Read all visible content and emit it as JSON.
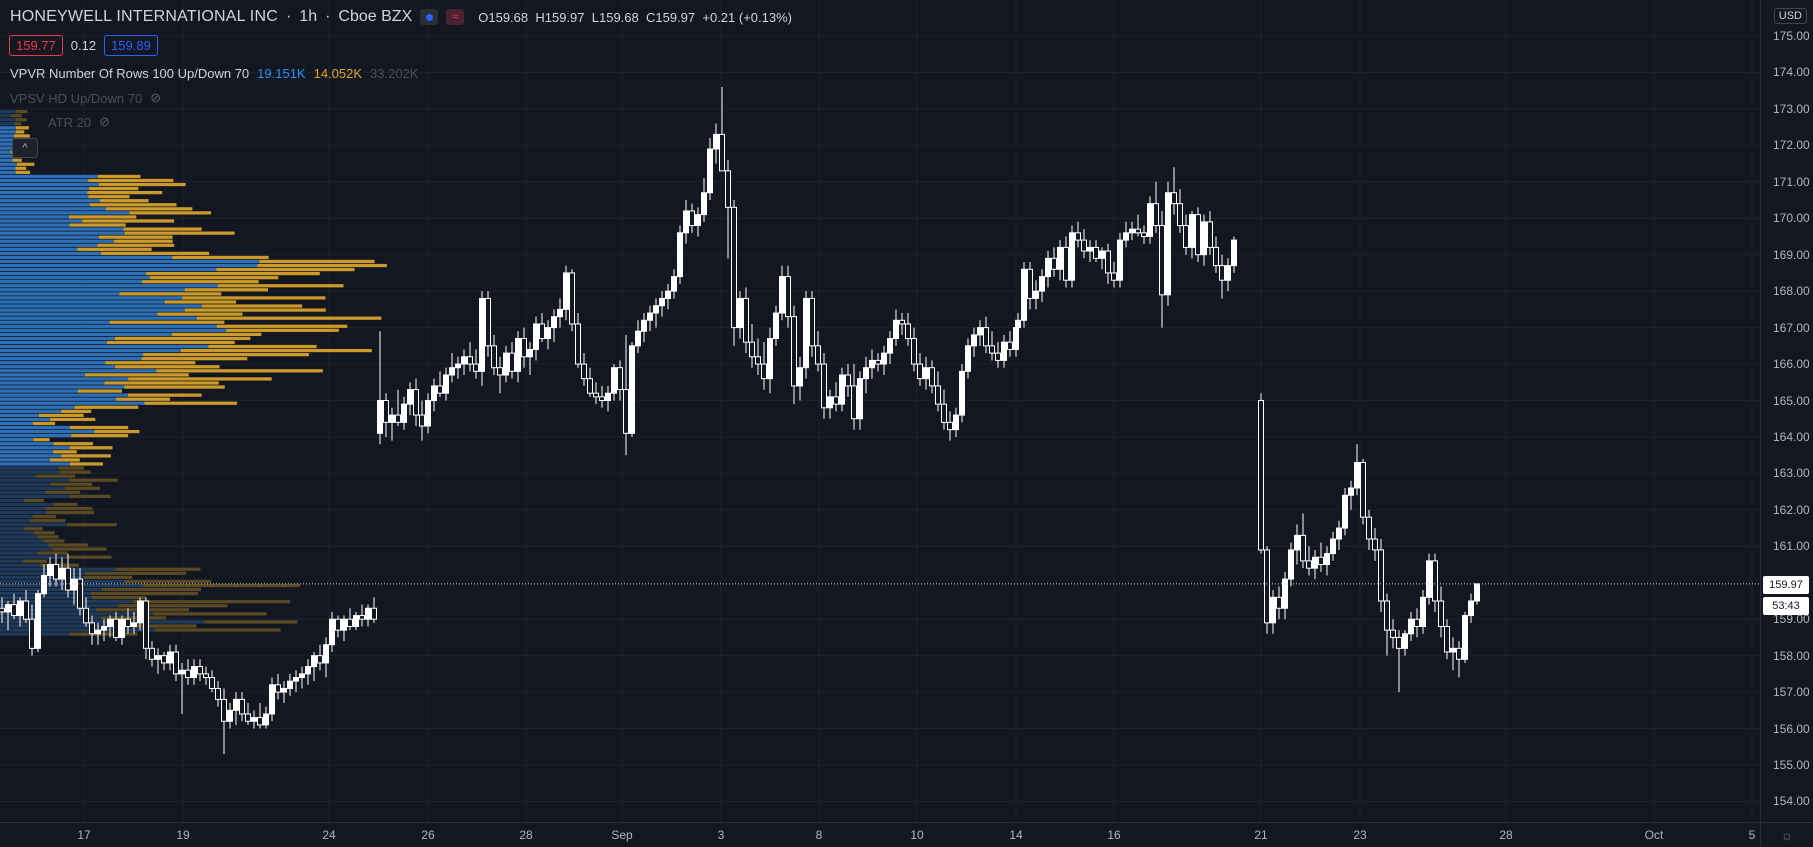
{
  "header": {
    "symbol": "HONEYWELL INTERNATIONAL INC",
    "interval": "1h",
    "exchange": "Cboe BZX",
    "ohlc": {
      "o_label": "O",
      "o": "159.68",
      "h_label": "H",
      "h": "159.97",
      "l_label": "L",
      "l": "159.68",
      "c_label": "C",
      "c": "159.97",
      "change": "+0.21 (+0.13%)"
    }
  },
  "quote": {
    "bid": "159.77",
    "spread": "0.12",
    "ask": "159.89"
  },
  "indicators": [
    {
      "name": "VPVR Number Of Rows 100 Up/Down 70",
      "up": "19.151K",
      "down": "14.052K",
      "total": "33.202K"
    },
    {
      "name": "VPSV HD Up/Down 70"
    },
    {
      "name": "ATR 20"
    }
  ],
  "price_scale": {
    "currency": "USD",
    "ticks": [
      "175.00",
      "174.00",
      "173.00",
      "172.00",
      "171.00",
      "170.00",
      "169.00",
      "168.00",
      "167.00",
      "166.00",
      "165.00",
      "164.00",
      "163.00",
      "162.00",
      "161.00",
      "159.00",
      "158.00",
      "157.00",
      "156.00",
      "155.00",
      "154.00"
    ],
    "last_price": "159.97",
    "countdown": "53:43"
  },
  "time_scale": {
    "ticks": [
      "17",
      "19",
      "24",
      "26",
      "28",
      "Sep",
      "3",
      "8",
      "10",
      "14",
      "16",
      "21",
      "23",
      "28",
      "Oct",
      "5"
    ]
  },
  "colors": {
    "background": "#131722",
    "candle": "#ffffff",
    "vp_up": "#2c71b8",
    "vp_down": "#cc9a29",
    "vp_up_dim": "#1f3a5a",
    "vp_down_dim": "#5a4a24",
    "bid": "#f23645",
    "ask": "#2962ff"
  },
  "icons": {
    "collapse": "chevron-up-icon",
    "hidden": "eye-off-icon",
    "settings": "gear-icon"
  }
}
